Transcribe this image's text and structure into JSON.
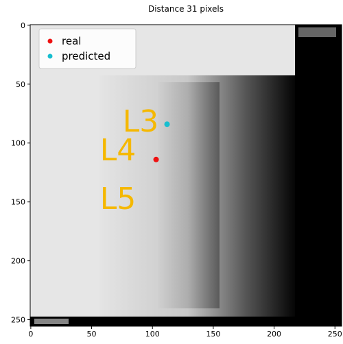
{
  "chart_data": {
    "type": "scatter",
    "title": "Distance 31 pixels",
    "series": [
      {
        "name": "real",
        "color": "#ee1111",
        "x": [
          103
        ],
        "values": [
          114
        ]
      },
      {
        "name": "predicted",
        "color": "#17becf",
        "x": [
          112
        ],
        "values": [
          84
        ]
      }
    ],
    "annotations": [
      "L3",
      "L4",
      "L5"
    ],
    "xlim": [
      -0.5,
      255.5
    ],
    "ylim": [
      255.5,
      -0.5
    ],
    "xticks": [
      0,
      50,
      100,
      150,
      200,
      250
    ],
    "yticks": [
      0,
      50,
      100,
      150,
      200,
      250
    ],
    "legend": "upper-left"
  }
}
